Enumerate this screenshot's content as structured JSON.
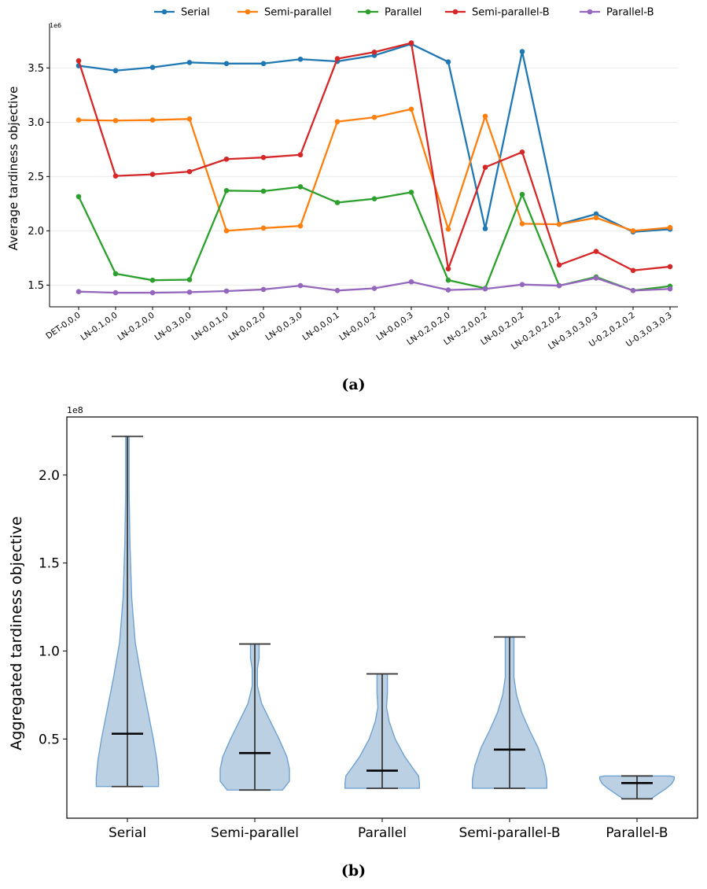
{
  "figure": {
    "caption_a": "(a)",
    "caption_b": "(b)"
  },
  "chart_data": [
    {
      "type": "line",
      "title": "",
      "xlabel": "",
      "ylabel": "Average tardiness objective",
      "y_scale_label": "1e6",
      "ylim": [
        1.3,
        3.85
      ],
      "yticks": [
        "1.5",
        "2.0",
        "2.5",
        "3.0",
        "3.5"
      ],
      "ytick_values": [
        1.5,
        2.0,
        2.5,
        3.0,
        3.5
      ],
      "grid": true,
      "legend_position": "top-center",
      "categories": [
        "DET-0,0,0",
        "LN-0.1,0,0",
        "LN-0.2,0,0",
        "LN-0.3,0,0",
        "LN-0,0.1,0",
        "LN-0,0.2,0",
        "LN-0,0.3,0",
        "LN-0,0,0.1",
        "LN-0,0,0.2",
        "LN-0,0,0.3",
        "LN-0.2,0.2,0",
        "LN-0.2,0,0.2",
        "LN-0,0.2,0.2",
        "LN-0.2,0.2,0.2",
        "LN-0.3,0.3,0.3",
        "U-0.2,0.2,0.2",
        "U-0.3,0.3,0.3"
      ],
      "series": [
        {
          "name": "Serial",
          "color": "#1f77b4",
          "values": [
            3.52,
            3.475,
            3.505,
            3.55,
            3.54,
            3.54,
            3.58,
            3.56,
            3.615,
            3.72,
            3.555,
            2.02,
            3.65,
            2.06,
            2.155,
            1.99,
            2.015
          ]
        },
        {
          "name": "Semi-parallel",
          "color": "#ff7f0e",
          "values": [
            3.02,
            3.015,
            3.02,
            3.03,
            2.0,
            2.025,
            2.045,
            3.005,
            3.045,
            3.12,
            2.015,
            3.055,
            2.065,
            2.06,
            2.12,
            2.0,
            2.03
          ]
        },
        {
          "name": "Parallel",
          "color": "#2ca02c",
          "values": [
            2.315,
            1.605,
            1.545,
            1.55,
            2.37,
            2.365,
            2.405,
            2.26,
            2.295,
            2.355,
            1.545,
            1.47,
            2.335,
            1.495,
            1.575,
            1.45,
            1.49
          ]
        },
        {
          "name": "Semi-parallel-B",
          "color": "#d62728",
          "values": [
            3.565,
            2.505,
            2.52,
            2.545,
            2.66,
            2.675,
            2.7,
            3.585,
            3.645,
            3.73,
            1.65,
            2.585,
            2.725,
            1.685,
            1.81,
            1.635,
            1.67
          ]
        },
        {
          "name": "Parallel-B",
          "color": "#9467bd",
          "values": [
            1.44,
            1.43,
            1.43,
            1.435,
            1.445,
            1.46,
            1.495,
            1.45,
            1.47,
            1.53,
            1.455,
            1.465,
            1.505,
            1.495,
            1.565,
            1.45,
            1.465
          ]
        }
      ]
    },
    {
      "type": "violin",
      "title": "",
      "xlabel": "",
      "ylabel": "Aggregated tardiness objective",
      "y_scale_label": "1e8",
      "ylim": [
        0.05,
        2.33
      ],
      "yticks": [
        "0.5",
        "1.0",
        "1.5",
        "2.0"
      ],
      "ytick_values": [
        0.5,
        1.0,
        1.5,
        2.0
      ],
      "grid": false,
      "fill_color": "#b8cde2",
      "edge_color": "#6fa2d1",
      "categories": [
        "Serial",
        "Semi-parallel",
        "Parallel",
        "Semi-parallel-B",
        "Parallel-B"
      ],
      "series": [
        {
          "name": "Serial",
          "min": 0.23,
          "max": 2.22,
          "median": 0.53,
          "profile": [
            [
              0.23,
              0.36
            ],
            [
              0.28,
              0.36
            ],
            [
              0.38,
              0.34
            ],
            [
              0.5,
              0.3
            ],
            [
              0.65,
              0.24
            ],
            [
              0.85,
              0.16
            ],
            [
              1.05,
              0.09
            ],
            [
              1.3,
              0.05
            ],
            [
              1.6,
              0.03
            ],
            [
              1.9,
              0.02
            ],
            [
              2.22,
              0.02
            ]
          ]
        },
        {
          "name": "Semi-parallel",
          "min": 0.21,
          "max": 1.04,
          "median": 0.42,
          "profile": [
            [
              0.21,
              0.32
            ],
            [
              0.26,
              0.4
            ],
            [
              0.33,
              0.4
            ],
            [
              0.4,
              0.37
            ],
            [
              0.5,
              0.28
            ],
            [
              0.6,
              0.18
            ],
            [
              0.7,
              0.08
            ],
            [
              0.8,
              0.03
            ],
            [
              0.9,
              0.03
            ],
            [
              0.96,
              0.05
            ],
            [
              1.04,
              0.05
            ]
          ]
        },
        {
          "name": "Parallel",
          "min": 0.22,
          "max": 0.87,
          "median": 0.32,
          "profile": [
            [
              0.22,
              0.43
            ],
            [
              0.25,
              0.43
            ],
            [
              0.29,
              0.42
            ],
            [
              0.33,
              0.36
            ],
            [
              0.4,
              0.26
            ],
            [
              0.5,
              0.15
            ],
            [
              0.6,
              0.08
            ],
            [
              0.68,
              0.05
            ],
            [
              0.76,
              0.06
            ],
            [
              0.87,
              0.06
            ]
          ]
        },
        {
          "name": "Semi-parallel-B",
          "min": 0.22,
          "max": 1.08,
          "median": 0.44,
          "profile": [
            [
              0.22,
              0.43
            ],
            [
              0.27,
              0.43
            ],
            [
              0.35,
              0.4
            ],
            [
              0.45,
              0.33
            ],
            [
              0.55,
              0.23
            ],
            [
              0.65,
              0.14
            ],
            [
              0.75,
              0.08
            ],
            [
              0.85,
              0.05
            ],
            [
              0.95,
              0.05
            ],
            [
              1.08,
              0.05
            ]
          ]
        },
        {
          "name": "Parallel-B",
          "min": 0.16,
          "max": 0.29,
          "median": 0.25,
          "profile": [
            [
              0.16,
              0.16
            ],
            [
              0.18,
              0.22
            ],
            [
              0.2,
              0.28
            ],
            [
              0.22,
              0.34
            ],
            [
              0.245,
              0.4
            ],
            [
              0.27,
              0.43
            ],
            [
              0.285,
              0.43
            ],
            [
              0.29,
              0.38
            ]
          ]
        }
      ]
    }
  ]
}
